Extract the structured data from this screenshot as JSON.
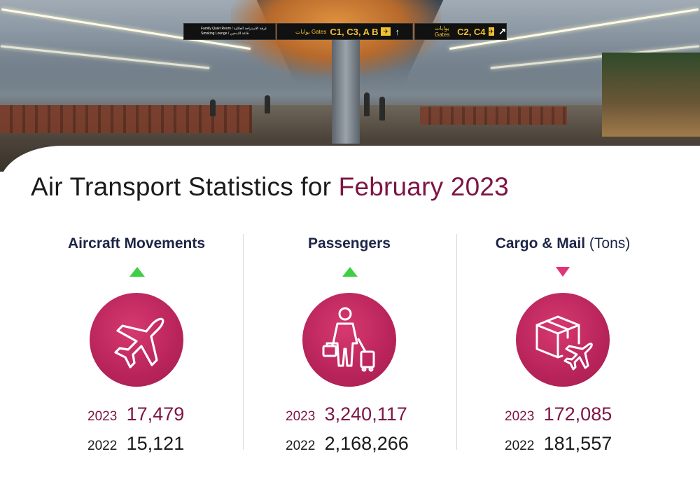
{
  "hero": {
    "sign_small_line1": "Family Quiet Room / غرفة الاستراحة العائلية",
    "sign_small_line2": "Smoking Lounge / قاعة التدخين",
    "sign_a_gates_label": "بوابات Gates",
    "sign_a_gates": "C1, C3, A B",
    "sign_b_gates_label": "بوابات Gates",
    "sign_b_gates": "C2, C4"
  },
  "title": {
    "prefix": "Air Transport Statistics for ",
    "period": "February 2023"
  },
  "colors": {
    "accent": "#7e1445",
    "circle": "#c02a61",
    "up": "#3fcf45",
    "down": "#e0347a",
    "heading": "#1d2547"
  },
  "stats": [
    {
      "title": "Aircraft Movements",
      "unit": "",
      "trend": "up",
      "icon": "airplane-icon",
      "current_year": "2023",
      "current_value": "17,479",
      "previous_year": "2022",
      "previous_value": "15,121"
    },
    {
      "title": "Passengers",
      "unit": "",
      "trend": "up",
      "icon": "passenger-luggage-icon",
      "current_year": "2023",
      "current_value": "3,240,117",
      "previous_year": "2022",
      "previous_value": "2,168,266"
    },
    {
      "title": "Cargo & Mail",
      "unit": "(Tons)",
      "trend": "down",
      "icon": "cargo-box-airplane-icon",
      "current_year": "2023",
      "current_value": "172,085",
      "previous_year": "2022",
      "previous_value": "181,557"
    }
  ]
}
